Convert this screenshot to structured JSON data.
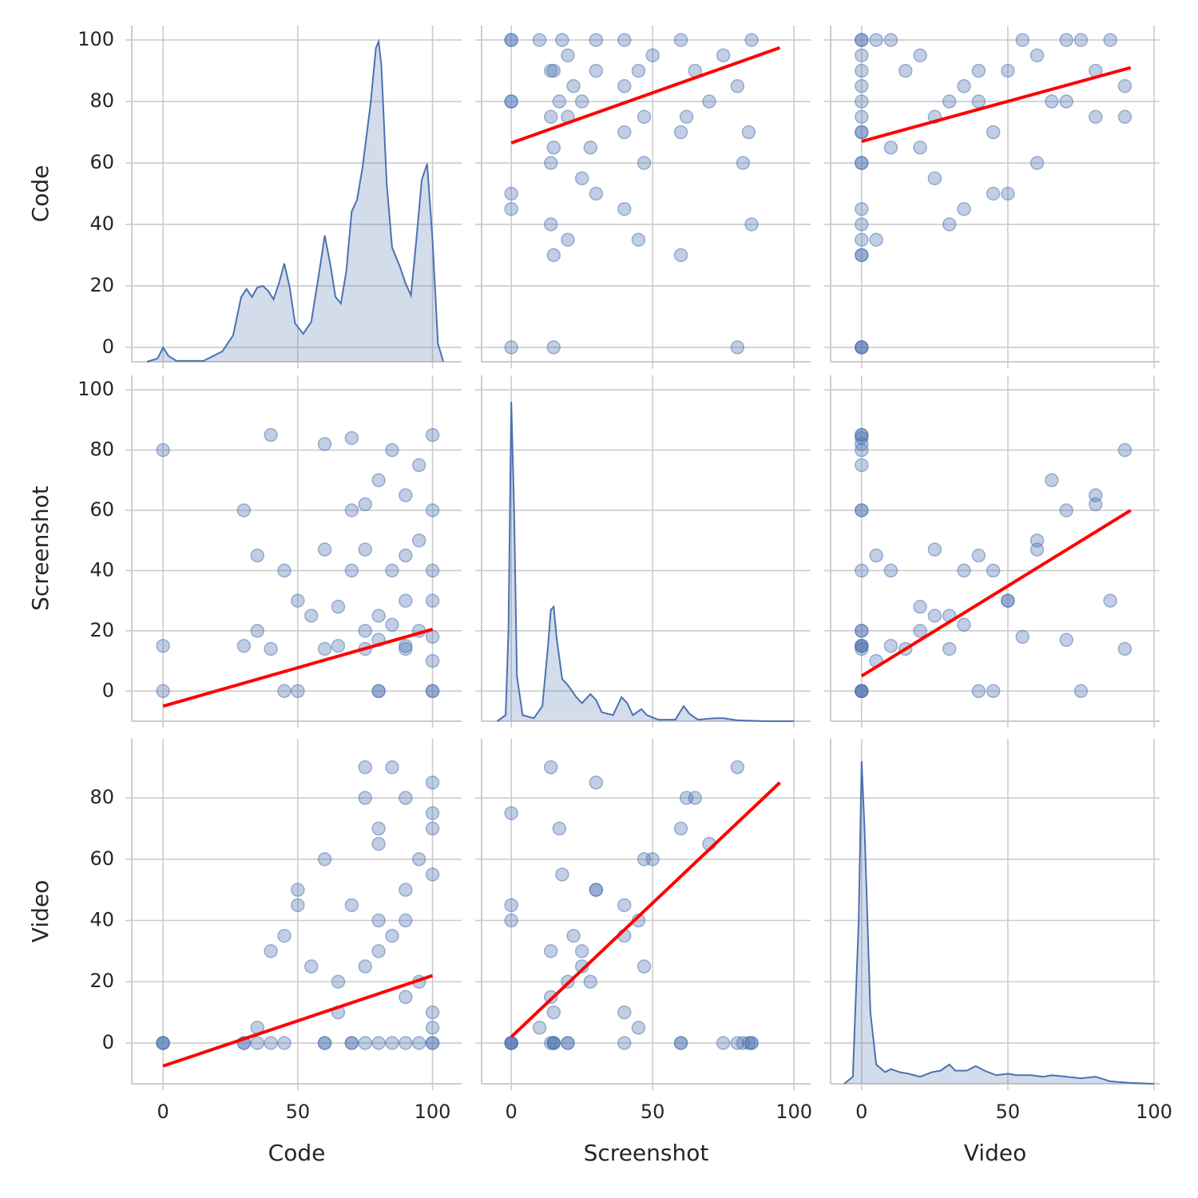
{
  "chart_data": [
    {
      "type": "area",
      "color": "#4c72b0",
      "xlim": [
        -11.6,
        110.8
      ],
      "ylim": [
        -4.7,
        104.7
      ],
      "xticks": [
        0,
        50,
        100
      ],
      "yticks": [
        0,
        20,
        40,
        60,
        80,
        100
      ],
      "ylabel": "Code",
      "x": [
        -6,
        -2,
        0,
        2,
        5,
        15,
        22,
        26,
        29,
        31,
        33,
        35,
        37,
        39,
        41,
        43,
        45,
        47,
        49,
        52,
        55,
        58,
        60,
        62,
        64,
        66,
        68,
        70,
        72,
        74,
        77,
        79,
        80,
        81,
        83,
        85,
        88,
        90,
        92,
        94,
        96,
        98,
        100,
        102,
        104
      ],
      "values": [
        -4.7,
        -3.6,
        0,
        -2.8,
        -4.4,
        -4.4,
        -1.3,
        3.9,
        16.4,
        19,
        16.4,
        19.5,
        20,
        18.4,
        15.6,
        20.8,
        27.3,
        19.5,
        7.8,
        4.4,
        8.3,
        24.7,
        36.4,
        27.3,
        16.4,
        14.3,
        24.7,
        44.2,
        48,
        58.4,
        79.2,
        97.4,
        99.5,
        92,
        53.2,
        32.5,
        26,
        20.8,
        16.9,
        35,
        54.5,
        59.7,
        35,
        1.3,
        -4.7
      ]
    },
    {
      "type": "scatter",
      "color": "#4c72b0",
      "xlim": [
        -10.5,
        105.9
      ],
      "ylim": [
        -4.7,
        104.7
      ],
      "xticks": [
        0,
        50,
        100
      ],
      "yticks": [
        0,
        20,
        40,
        60,
        80,
        100
      ],
      "x": [
        0,
        0,
        0,
        20,
        15,
        14,
        0,
        15,
        40,
        60,
        75,
        85,
        85,
        20,
        25,
        45,
        60,
        80,
        62,
        47,
        30,
        20,
        15,
        30,
        40,
        70,
        14,
        25,
        0,
        40,
        15,
        60,
        0,
        18,
        82,
        45,
        14,
        22,
        50,
        80,
        10,
        14,
        84,
        65,
        28,
        40,
        17,
        0,
        30,
        47
      ],
      "values": [
        100,
        0,
        80,
        75,
        90,
        60,
        45,
        30,
        85,
        70,
        95,
        100,
        40,
        35,
        80,
        90,
        100,
        85,
        75,
        60,
        50,
        95,
        65,
        100,
        70,
        80,
        90,
        55,
        100,
        45,
        0,
        30,
        80,
        100,
        60,
        35,
        75,
        85,
        95,
        0,
        100,
        40,
        70,
        90,
        65,
        100,
        80,
        50,
        90,
        75
      ],
      "fit": {
        "color": "#ff0000",
        "x": [
          0,
          95
        ],
        "values": [
          66.5,
          97.5
        ]
      }
    },
    {
      "type": "scatter",
      "color": "#4c72b0",
      "xlim": [
        -10.6,
        101.9
      ],
      "ylim": [
        -4.7,
        104.7
      ],
      "xticks": [
        0,
        50,
        100
      ],
      "yticks": [
        0,
        20,
        40,
        60,
        80,
        100
      ],
      "x": [
        0,
        0,
        0,
        0,
        0,
        0,
        0,
        0,
        0,
        0,
        0,
        0,
        0,
        0,
        30,
        40,
        70,
        90,
        80,
        60,
        50,
        20,
        10,
        85,
        45,
        65,
        15,
        25,
        75,
        35,
        0,
        0,
        40,
        55,
        0,
        5,
        90,
        35,
        60,
        0,
        5,
        30,
        0,
        80,
        20,
        10,
        70,
        45,
        50,
        25
      ],
      "values": [
        100,
        0,
        80,
        75,
        90,
        60,
        45,
        30,
        85,
        70,
        95,
        100,
        40,
        35,
        80,
        90,
        100,
        85,
        75,
        60,
        50,
        95,
        65,
        100,
        70,
        80,
        90,
        55,
        100,
        45,
        0,
        30,
        80,
        100,
        60,
        35,
        75,
        85,
        95,
        0,
        100,
        40,
        70,
        90,
        65,
        100,
        80,
        50,
        90,
        75
      ],
      "fit": {
        "color": "#ff0000",
        "x": [
          0,
          92
        ],
        "values": [
          67,
          91
        ]
      }
    },
    {
      "type": "scatter",
      "color": "#4c72b0",
      "xlim": [
        -11.6,
        110.8
      ],
      "ylim": [
        -10,
        104.8
      ],
      "xticks": [
        0,
        50,
        100
      ],
      "yticks": [
        0,
        20,
        40,
        60,
        80,
        100
      ],
      "ylabel": "Screenshot",
      "x": [
        100,
        0,
        80,
        75,
        90,
        60,
        45,
        30,
        85,
        70,
        95,
        100,
        40,
        35,
        80,
        90,
        100,
        85,
        75,
        60,
        50,
        95,
        65,
        100,
        70,
        80,
        90,
        55,
        100,
        45,
        0,
        30,
        80,
        100,
        60,
        35,
        75,
        85,
        95,
        0,
        100,
        40,
        70,
        90,
        65,
        100,
        80,
        50,
        90,
        75
      ],
      "values": [
        0,
        0,
        0,
        20,
        15,
        14,
        0,
        15,
        40,
        60,
        75,
        85,
        85,
        20,
        25,
        45,
        60,
        80,
        62,
        47,
        30,
        20,
        15,
        30,
        40,
        70,
        14,
        25,
        0,
        40,
        15,
        60,
        0,
        18,
        82,
        45,
        14,
        22,
        50,
        80,
        10,
        14,
        84,
        65,
        28,
        40,
        17,
        0,
        30,
        47
      ],
      "fit": {
        "color": "#ff0000",
        "x": [
          0,
          100
        ],
        "values": [
          -5,
          20.5
        ]
      }
    },
    {
      "type": "area",
      "color": "#4c72b0",
      "xlim": [
        -10.5,
        105.9
      ],
      "ylim": [
        -10,
        104.8
      ],
      "xticks": [
        0,
        50,
        100
      ],
      "yticks": [
        0,
        20,
        40,
        60,
        80,
        100
      ],
      "x": [
        -5,
        -2,
        -1,
        0,
        1,
        2,
        4,
        8,
        11,
        13,
        14,
        15,
        16,
        18,
        20,
        23,
        25,
        28,
        30,
        32,
        36,
        39,
        41,
        43,
        46,
        48,
        52,
        58,
        61,
        63,
        66,
        72,
        75,
        80,
        90,
        100
      ],
      "values": [
        -10,
        -8,
        20,
        96,
        60,
        5,
        -8,
        -9,
        -5,
        15,
        27,
        28,
        18,
        4,
        2,
        -2,
        -4,
        -1,
        -3,
        -7,
        -8,
        -2,
        -4,
        -8,
        -6,
        -8,
        -9.5,
        -9.5,
        -5,
        -7.5,
        -9.5,
        -9,
        -9,
        -9.7,
        -10,
        -10
      ]
    },
    {
      "type": "scatter",
      "color": "#4c72b0",
      "xlim": [
        -10.6,
        101.9
      ],
      "ylim": [
        -10,
        104.8
      ],
      "xticks": [
        0,
        50,
        100
      ],
      "yticks": [
        0,
        20,
        40,
        60,
        80,
        100
      ],
      "x": [
        0,
        0,
        0,
        0,
        0,
        0,
        0,
        0,
        0,
        0,
        0,
        0,
        0,
        0,
        30,
        40,
        70,
        90,
        80,
        60,
        50,
        20,
        10,
        85,
        45,
        65,
        15,
        25,
        75,
        35,
        0,
        0,
        40,
        55,
        0,
        5,
        90,
        35,
        60,
        0,
        5,
        30,
        0,
        80,
        20,
        10,
        70,
        45,
        50,
        25
      ],
      "values": [
        0,
        0,
        0,
        20,
        15,
        14,
        0,
        15,
        40,
        60,
        75,
        85,
        85,
        20,
        25,
        45,
        60,
        80,
        62,
        47,
        30,
        20,
        15,
        30,
        40,
        70,
        14,
        25,
        0,
        40,
        15,
        60,
        0,
        18,
        82,
        45,
        14,
        22,
        50,
        80,
        10,
        14,
        84,
        65,
        28,
        40,
        17,
        0,
        30,
        47
      ],
      "fit": {
        "color": "#ff0000",
        "x": [
          0,
          92
        ],
        "values": [
          5,
          60
        ]
      }
    },
    {
      "type": "scatter",
      "color": "#4c72b0",
      "xlim": [
        -11.6,
        110.8
      ],
      "ylim": [
        -13.3,
        99.3
      ],
      "xticks": [
        0,
        50,
        100
      ],
      "yticks": [
        0,
        20,
        40,
        60,
        80
      ],
      "ylabel": "Video",
      "xlabel": "Code",
      "x": [
        100,
        0,
        80,
        75,
        90,
        60,
        45,
        30,
        85,
        70,
        95,
        100,
        40,
        35,
        80,
        90,
        100,
        85,
        75,
        60,
        50,
        95,
        65,
        100,
        70,
        80,
        90,
        55,
        100,
        45,
        0,
        30,
        80,
        100,
        60,
        35,
        75,
        85,
        95,
        0,
        100,
        40,
        70,
        90,
        65,
        100,
        80,
        50,
        90,
        75
      ],
      "values": [
        0,
        0,
        0,
        0,
        0,
        0,
        0,
        0,
        0,
        0,
        0,
        0,
        0,
        0,
        30,
        40,
        70,
        90,
        80,
        60,
        50,
        20,
        10,
        85,
        45,
        65,
        15,
        25,
        75,
        35,
        0,
        0,
        40,
        55,
        0,
        5,
        90,
        35,
        60,
        0,
        5,
        30,
        0,
        80,
        20,
        10,
        70,
        45,
        50,
        25
      ],
      "fit": {
        "color": "#ff0000",
        "x": [
          0,
          100
        ],
        "values": [
          -7.5,
          22
        ]
      }
    },
    {
      "type": "scatter",
      "color": "#4c72b0",
      "xlim": [
        -10.5,
        105.9
      ],
      "ylim": [
        -13.3,
        99.3
      ],
      "xticks": [
        0,
        50,
        100
      ],
      "yticks": [
        0,
        20,
        40,
        60,
        80
      ],
      "xlabel": "Screenshot",
      "x": [
        0,
        0,
        0,
        20,
        15,
        14,
        0,
        15,
        40,
        60,
        75,
        85,
        85,
        20,
        25,
        45,
        60,
        80,
        62,
        47,
        30,
        20,
        15,
        30,
        40,
        70,
        14,
        25,
        0,
        40,
        15,
        60,
        0,
        18,
        82,
        45,
        14,
        22,
        50,
        80,
        10,
        14,
        84,
        65,
        28,
        40,
        17,
        0,
        30,
        47
      ],
      "values": [
        0,
        0,
        0,
        0,
        0,
        0,
        0,
        0,
        0,
        0,
        0,
        0,
        0,
        0,
        30,
        40,
        70,
        90,
        80,
        60,
        50,
        20,
        10,
        85,
        45,
        65,
        15,
        25,
        75,
        35,
        0,
        0,
        40,
        55,
        0,
        5,
        90,
        35,
        60,
        0,
        5,
        30,
        0,
        80,
        20,
        10,
        70,
        45,
        50,
        25
      ],
      "fit": {
        "color": "#ff0000",
        "x": [
          0,
          95
        ],
        "values": [
          2,
          85
        ]
      }
    },
    {
      "type": "area",
      "color": "#4c72b0",
      "xlim": [
        -10.6,
        101.9
      ],
      "ylim": [
        -13.3,
        99.3
      ],
      "xticks": [
        0,
        50,
        100
      ],
      "yticks": [
        0,
        20,
        40,
        60,
        80
      ],
      "xlabel": "Video",
      "x": [
        -6,
        -3,
        -1,
        0,
        1,
        3,
        5,
        8,
        10,
        13,
        16,
        20,
        24,
        27,
        30,
        32,
        36,
        39,
        42,
        46,
        50,
        53,
        58,
        62,
        65,
        70,
        75,
        80,
        85,
        92,
        100
      ],
      "values": [
        -13.3,
        -11,
        40,
        92,
        70,
        10,
        -7,
        -9.5,
        -8.5,
        -9.5,
        -10,
        -11,
        -9.5,
        -9,
        -7,
        -9,
        -9,
        -7.5,
        -9,
        -10.5,
        -10,
        -10.5,
        -10.5,
        -11,
        -10.5,
        -11,
        -11.5,
        -11,
        -12.5,
        -13,
        -13.3
      ]
    }
  ]
}
